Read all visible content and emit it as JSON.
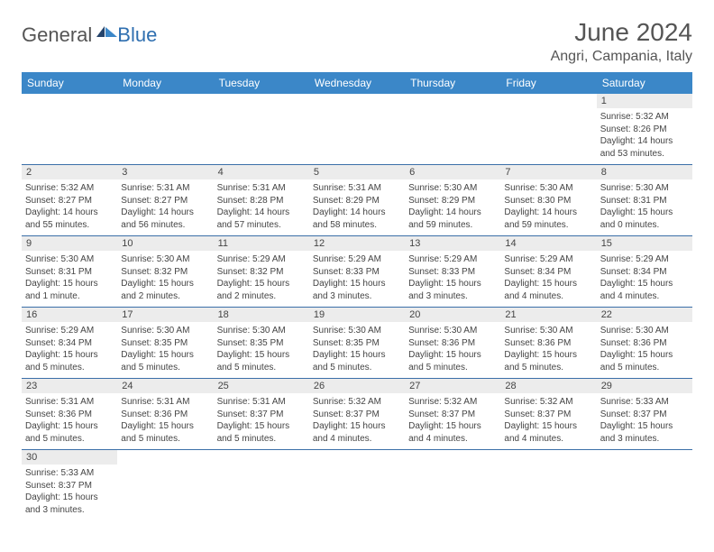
{
  "logo": {
    "text1": "General",
    "text2": "Blue"
  },
  "title": "June 2024",
  "location": "Angri, Campania, Italy",
  "colors": {
    "header_bg": "#3b87c8",
    "header_text": "#ffffff",
    "daynum_bg": "#ececec",
    "text": "#444444",
    "border": "#3b6fa8"
  },
  "weekdays": [
    "Sunday",
    "Monday",
    "Tuesday",
    "Wednesday",
    "Thursday",
    "Friday",
    "Saturday"
  ],
  "weeks": [
    {
      "nums": [
        "",
        "",
        "",
        "",
        "",
        "",
        "1"
      ],
      "cells": [
        null,
        null,
        null,
        null,
        null,
        null,
        {
          "sunrise": "Sunrise: 5:32 AM",
          "sunset": "Sunset: 8:26 PM",
          "daylight": "Daylight: 14 hours and 53 minutes."
        }
      ]
    },
    {
      "nums": [
        "2",
        "3",
        "4",
        "5",
        "6",
        "7",
        "8"
      ],
      "cells": [
        {
          "sunrise": "Sunrise: 5:32 AM",
          "sunset": "Sunset: 8:27 PM",
          "daylight": "Daylight: 14 hours and 55 minutes."
        },
        {
          "sunrise": "Sunrise: 5:31 AM",
          "sunset": "Sunset: 8:27 PM",
          "daylight": "Daylight: 14 hours and 56 minutes."
        },
        {
          "sunrise": "Sunrise: 5:31 AM",
          "sunset": "Sunset: 8:28 PM",
          "daylight": "Daylight: 14 hours and 57 minutes."
        },
        {
          "sunrise": "Sunrise: 5:31 AM",
          "sunset": "Sunset: 8:29 PM",
          "daylight": "Daylight: 14 hours and 58 minutes."
        },
        {
          "sunrise": "Sunrise: 5:30 AM",
          "sunset": "Sunset: 8:29 PM",
          "daylight": "Daylight: 14 hours and 59 minutes."
        },
        {
          "sunrise": "Sunrise: 5:30 AM",
          "sunset": "Sunset: 8:30 PM",
          "daylight": "Daylight: 14 hours and 59 minutes."
        },
        {
          "sunrise": "Sunrise: 5:30 AM",
          "sunset": "Sunset: 8:31 PM",
          "daylight": "Daylight: 15 hours and 0 minutes."
        }
      ]
    },
    {
      "nums": [
        "9",
        "10",
        "11",
        "12",
        "13",
        "14",
        "15"
      ],
      "cells": [
        {
          "sunrise": "Sunrise: 5:30 AM",
          "sunset": "Sunset: 8:31 PM",
          "daylight": "Daylight: 15 hours and 1 minute."
        },
        {
          "sunrise": "Sunrise: 5:30 AM",
          "sunset": "Sunset: 8:32 PM",
          "daylight": "Daylight: 15 hours and 2 minutes."
        },
        {
          "sunrise": "Sunrise: 5:29 AM",
          "sunset": "Sunset: 8:32 PM",
          "daylight": "Daylight: 15 hours and 2 minutes."
        },
        {
          "sunrise": "Sunrise: 5:29 AM",
          "sunset": "Sunset: 8:33 PM",
          "daylight": "Daylight: 15 hours and 3 minutes."
        },
        {
          "sunrise": "Sunrise: 5:29 AM",
          "sunset": "Sunset: 8:33 PM",
          "daylight": "Daylight: 15 hours and 3 minutes."
        },
        {
          "sunrise": "Sunrise: 5:29 AM",
          "sunset": "Sunset: 8:34 PM",
          "daylight": "Daylight: 15 hours and 4 minutes."
        },
        {
          "sunrise": "Sunrise: 5:29 AM",
          "sunset": "Sunset: 8:34 PM",
          "daylight": "Daylight: 15 hours and 4 minutes."
        }
      ]
    },
    {
      "nums": [
        "16",
        "17",
        "18",
        "19",
        "20",
        "21",
        "22"
      ],
      "cells": [
        {
          "sunrise": "Sunrise: 5:29 AM",
          "sunset": "Sunset: 8:34 PM",
          "daylight": "Daylight: 15 hours and 5 minutes."
        },
        {
          "sunrise": "Sunrise: 5:30 AM",
          "sunset": "Sunset: 8:35 PM",
          "daylight": "Daylight: 15 hours and 5 minutes."
        },
        {
          "sunrise": "Sunrise: 5:30 AM",
          "sunset": "Sunset: 8:35 PM",
          "daylight": "Daylight: 15 hours and 5 minutes."
        },
        {
          "sunrise": "Sunrise: 5:30 AM",
          "sunset": "Sunset: 8:35 PM",
          "daylight": "Daylight: 15 hours and 5 minutes."
        },
        {
          "sunrise": "Sunrise: 5:30 AM",
          "sunset": "Sunset: 8:36 PM",
          "daylight": "Daylight: 15 hours and 5 minutes."
        },
        {
          "sunrise": "Sunrise: 5:30 AM",
          "sunset": "Sunset: 8:36 PM",
          "daylight": "Daylight: 15 hours and 5 minutes."
        },
        {
          "sunrise": "Sunrise: 5:30 AM",
          "sunset": "Sunset: 8:36 PM",
          "daylight": "Daylight: 15 hours and 5 minutes."
        }
      ]
    },
    {
      "nums": [
        "23",
        "24",
        "25",
        "26",
        "27",
        "28",
        "29"
      ],
      "cells": [
        {
          "sunrise": "Sunrise: 5:31 AM",
          "sunset": "Sunset: 8:36 PM",
          "daylight": "Daylight: 15 hours and 5 minutes."
        },
        {
          "sunrise": "Sunrise: 5:31 AM",
          "sunset": "Sunset: 8:36 PM",
          "daylight": "Daylight: 15 hours and 5 minutes."
        },
        {
          "sunrise": "Sunrise: 5:31 AM",
          "sunset": "Sunset: 8:37 PM",
          "daylight": "Daylight: 15 hours and 5 minutes."
        },
        {
          "sunrise": "Sunrise: 5:32 AM",
          "sunset": "Sunset: 8:37 PM",
          "daylight": "Daylight: 15 hours and 4 minutes."
        },
        {
          "sunrise": "Sunrise: 5:32 AM",
          "sunset": "Sunset: 8:37 PM",
          "daylight": "Daylight: 15 hours and 4 minutes."
        },
        {
          "sunrise": "Sunrise: 5:32 AM",
          "sunset": "Sunset: 8:37 PM",
          "daylight": "Daylight: 15 hours and 4 minutes."
        },
        {
          "sunrise": "Sunrise: 5:33 AM",
          "sunset": "Sunset: 8:37 PM",
          "daylight": "Daylight: 15 hours and 3 minutes."
        }
      ]
    },
    {
      "nums": [
        "30",
        "",
        "",
        "",
        "",
        "",
        ""
      ],
      "cells": [
        {
          "sunrise": "Sunrise: 5:33 AM",
          "sunset": "Sunset: 8:37 PM",
          "daylight": "Daylight: 15 hours and 3 minutes."
        },
        null,
        null,
        null,
        null,
        null,
        null
      ],
      "last": true
    }
  ]
}
